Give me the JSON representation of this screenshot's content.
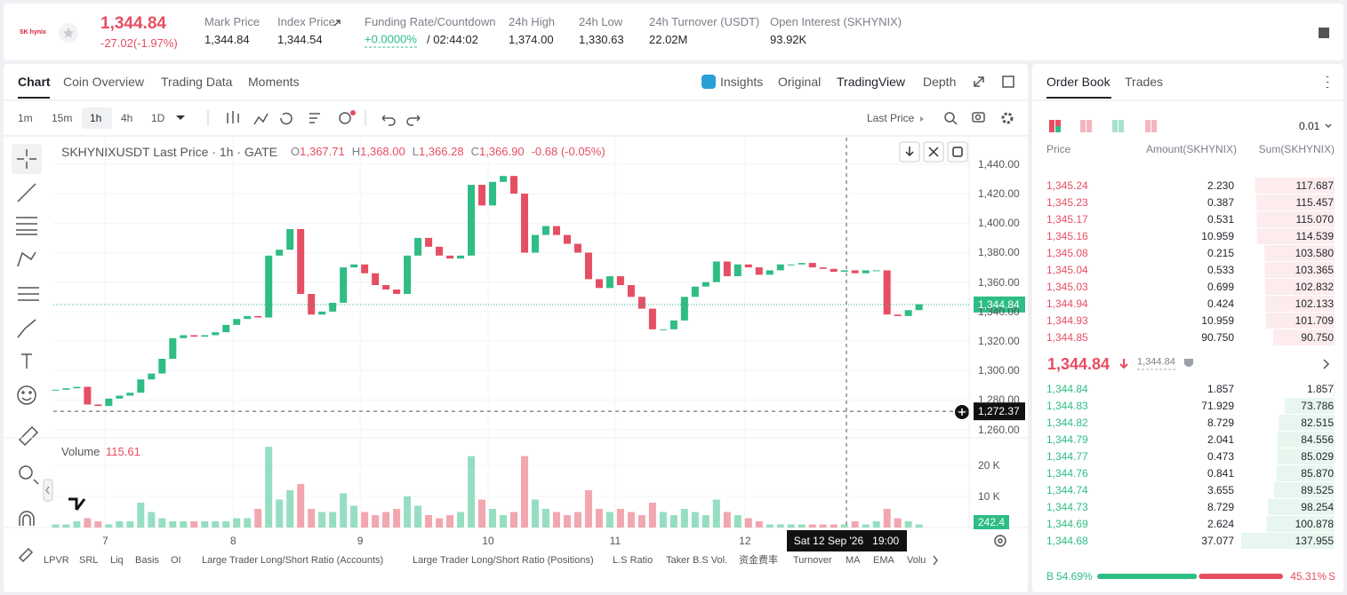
{
  "header": {
    "logo": "SK hynix",
    "price": "1,344.84",
    "change": "-27.02(-1.97%)",
    "stats": [
      {
        "label": "Mark Price",
        "value": "1,344.84"
      },
      {
        "label": "Index Price",
        "value": "1,344.54"
      },
      {
        "label": "Funding Rate/Countdown",
        "value": "+0.0000%",
        "extra": "/ 02:44:02"
      },
      {
        "label": "24h High",
        "value": "1,374.00"
      },
      {
        "label": "24h Low",
        "value": "1,330.63"
      },
      {
        "label": "24h Turnover (USDT)",
        "value": "22.02M"
      },
      {
        "label": "Open Interest (SKHYNIX)",
        "value": "93.92K"
      }
    ]
  },
  "chart_tabs": [
    "Chart",
    "Coin Overview",
    "Trading Data",
    "Moments"
  ],
  "view_tabs": [
    "Insights",
    "Original",
    "TradingView",
    "Depth"
  ],
  "intervals": [
    "1m",
    "15m",
    "1h",
    "4h",
    "1D"
  ],
  "price_type": "Last Price",
  "legend": {
    "symbol": "SKHYNIXUSDT Last Price · 1h · GATE",
    "ohlc": [
      {
        "k": "O",
        "v": "1,367.71"
      },
      {
        "k": "H",
        "v": "1,368.00"
      },
      {
        "k": "L",
        "v": "1,366.28"
      },
      {
        "k": "C",
        "v": "1,366.90"
      }
    ],
    "change": "-0.68 (-0.05%)"
  },
  "chart_data": {
    "type": "candlestick",
    "up_color": "#2ebd85",
    "down_color": "#e64e62",
    "close": [
      1287,
      1288,
      1289,
      1277,
      1276,
      1281,
      1283,
      1285,
      1294,
      1298,
      1308,
      1322,
      1324,
      1323,
      1324,
      1326,
      1331,
      1335,
      1337,
      1336,
      1378,
      1382,
      1396,
      1352,
      1338,
      1340,
      1346,
      1370,
      1372,
      1366,
      1358,
      1355,
      1352,
      1378,
      1390,
      1384,
      1378,
      1376,
      1378,
      1426,
      1412,
      1428,
      1432,
      1420,
      1380,
      1392,
      1398,
      1392,
      1386,
      1380,
      1362,
      1356,
      1364,
      1358,
      1350,
      1342,
      1328,
      1328,
      1334,
      1350,
      1357,
      1360,
      1374,
      1364,
      1372,
      1370,
      1365,
      1368,
      1372,
      1372,
      1373,
      1370,
      1369,
      1367,
      1368,
      1366,
      1368,
      1368,
      1338,
      1337,
      1341,
      1345
    ],
    "volume": [
      1,
      1,
      2,
      3,
      2,
      1,
      2,
      2,
      8,
      5,
      3,
      2,
      2,
      2,
      2,
      2,
      2,
      3,
      3,
      6,
      26,
      9,
      12,
      14,
      6,
      5,
      5,
      11,
      7,
      5,
      4,
      5,
      6,
      10,
      7,
      4,
      3,
      4,
      5,
      23,
      9,
      6,
      4,
      5,
      23,
      9,
      6,
      5,
      4,
      5,
      12,
      6,
      5,
      6,
      5,
      4,
      8,
      5,
      4,
      6,
      5,
      4,
      9,
      5,
      4,
      3,
      2,
      1,
      1,
      1,
      1,
      1,
      1,
      1,
      1,
      2,
      1,
      2,
      6,
      3,
      2,
      1
    ],
    "xlim": [
      -0.2,
      85.7
    ],
    "xticks": [
      {
        "value": 4.67,
        "label": "7"
      },
      {
        "value": 16.67,
        "label": "8"
      },
      {
        "value": 28.58,
        "label": "9"
      },
      {
        "value": 40.58,
        "label": "10"
      },
      {
        "value": 52.5,
        "label": "11"
      },
      {
        "value": 64.67,
        "label": "12"
      }
    ],
    "ylim": [
      1255,
      1458
    ],
    "yticks": [
      {
        "value": 1260,
        "label": "1,260.00"
      },
      {
        "value": 1280,
        "label": "1,280.00"
      },
      {
        "value": 1300,
        "label": "1,300.00"
      },
      {
        "value": 1320,
        "label": "1,320.00"
      },
      {
        "value": 1340,
        "label": "1,340.00"
      },
      {
        "value": 1360,
        "label": "1,360.00"
      },
      {
        "value": 1380,
        "label": "1,380.00"
      },
      {
        "value": 1400,
        "label": "1,400.00"
      },
      {
        "value": 1420,
        "label": "1,420.00"
      },
      {
        "value": 1440,
        "label": "1,440.00"
      }
    ],
    "volume_ylim": [
      0,
      28.6
    ],
    "volume_yticks": [
      {
        "value": 10,
        "label": "10 K"
      },
      {
        "value": 20,
        "label": "20 K"
      }
    ],
    "volume_title": "Volume",
    "volume_value": "115.61",
    "volume_last": "242.4",
    "last_price": {
      "value": 1344.84,
      "label": "1,344.84"
    },
    "crosshair_price": {
      "value": 1272.37,
      "label": "1,272.37"
    },
    "crosshair_time": "Sat 12 Sep '26   19:00",
    "grid": true
  },
  "indicators": [
    "LPVR",
    "SRL",
    "Liq",
    "Basis",
    "OI",
    "Large Trader Long/Short Ratio (Accounts)",
    "Large Trader Long/Short Ratio (Positions)",
    "L.S Ratio",
    "Taker B.S Vol.",
    "资金费率",
    "Turnover",
    "MA",
    "EMA",
    "Volu"
  ],
  "order_book": {
    "tabs": [
      "Order Book",
      "Trades"
    ],
    "precision": "0.01",
    "headers": [
      "Price",
      "Amount(SKHYNIX)",
      "Sum(SKHYNIX)"
    ],
    "asks": [
      {
        "price": "1,345.24",
        "amount": "2.230",
        "sum": {
          "value": 117.687,
          "label": "117.687"
        }
      },
      {
        "price": "1,345.23",
        "amount": "0.387",
        "sum": {
          "value": 115.457,
          "label": "115.457"
        }
      },
      {
        "price": "1,345.17",
        "amount": "0.531",
        "sum": {
          "value": 115.07,
          "label": "115.070"
        }
      },
      {
        "price": "1,345.16",
        "amount": "10.959",
        "sum": {
          "value": 114.539,
          "label": "114.539"
        }
      },
      {
        "price": "1,345.08",
        "amount": "0.215",
        "sum": {
          "value": 103.58,
          "label": "103.580"
        }
      },
      {
        "price": "1,345.04",
        "amount": "0.533",
        "sum": {
          "value": 103.365,
          "label": "103.365"
        }
      },
      {
        "price": "1,345.03",
        "amount": "0.699",
        "sum": {
          "value": 102.832,
          "label": "102.832"
        }
      },
      {
        "price": "1,344.94",
        "amount": "0.424",
        "sum": {
          "value": 102.133,
          "label": "102.133"
        }
      },
      {
        "price": "1,344.93",
        "amount": "10.959",
        "sum": {
          "value": 101.709,
          "label": "101.709"
        }
      },
      {
        "price": "1,344.85",
        "amount": "90.750",
        "sum": {
          "value": 90.75,
          "label": "90.750"
        }
      }
    ],
    "mid_price": "1,344.84",
    "mark_price": "1,344.84",
    "bids": [
      {
        "price": "1,344.84",
        "amount": "1.857",
        "sum": {
          "value": 1.857,
          "label": "1.857"
        }
      },
      {
        "price": "1,344.83",
        "amount": "71.929",
        "sum": {
          "value": 73.786,
          "label": "73.786"
        }
      },
      {
        "price": "1,344.82",
        "amount": "8.729",
        "sum": {
          "value": 82.515,
          "label": "82.515"
        }
      },
      {
        "price": "1,344.79",
        "amount": "2.041",
        "sum": {
          "value": 84.556,
          "label": "84.556"
        }
      },
      {
        "price": "1,344.77",
        "amount": "0.473",
        "sum": {
          "value": 85.029,
          "label": "85.029"
        }
      },
      {
        "price": "1,344.76",
        "amount": "0.841",
        "sum": {
          "value": 85.87,
          "label": "85.870"
        }
      },
      {
        "price": "1,344.74",
        "amount": "3.655",
        "sum": {
          "value": 89.525,
          "label": "89.525"
        }
      },
      {
        "price": "1,344.73",
        "amount": "8.729",
        "sum": {
          "value": 98.254,
          "label": "98.254"
        }
      },
      {
        "price": "1,344.69",
        "amount": "2.624",
        "sum": {
          "value": 100.878,
          "label": "100.878"
        }
      },
      {
        "price": "1,344.68",
        "amount": "37.077",
        "sum": {
          "value": 137.955,
          "label": "137.955"
        }
      }
    ],
    "buy_label": "B",
    "buy_ratio": {
      "value": 54.69,
      "label": "54.69%"
    },
    "sell_ratio": {
      "value": 45.31,
      "label": "45.31%"
    },
    "sell_label": "S"
  }
}
